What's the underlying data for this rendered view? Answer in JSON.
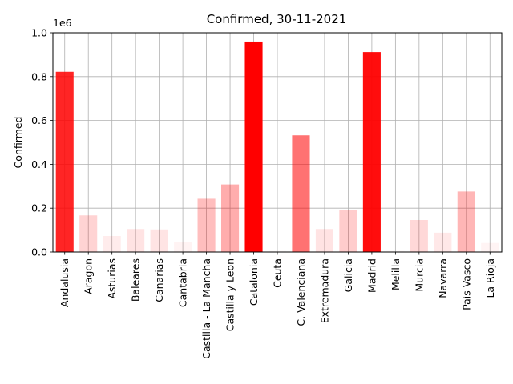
{
  "chart_data": {
    "type": "bar",
    "title": "Confirmed, 30-11-2021",
    "xlabel": "",
    "ylabel": "Confirmed",
    "offset_text": "1e6",
    "ylim": [
      0,
      1.0
    ],
    "yticks": [
      "0.0",
      "0.2",
      "0.4",
      "0.6",
      "0.8",
      "1.0"
    ],
    "grid": true,
    "bar_color": "#ff0000",
    "categories": [
      "Andalusia",
      "Aragon",
      "Asturias",
      "Baleares",
      "Canarias",
      "Cantabria",
      "Castilla - La Mancha",
      "Castilla y Leon",
      "Catalonia",
      "Ceuta",
      "C. Valenciana",
      "Extremadura",
      "Galicia",
      "Madrid",
      "Melilla",
      "Murcia",
      "Navarra",
      "Pais Vasco",
      "La Rioja"
    ],
    "series": [
      {
        "values": [
          0.822,
          0.167,
          0.073,
          0.105,
          0.103,
          0.047,
          0.243,
          0.308,
          0.96,
          0.008,
          0.532,
          0.105,
          0.193,
          0.912,
          0.01,
          0.146,
          0.088,
          0.276,
          0.041
        ]
      }
    ]
  }
}
